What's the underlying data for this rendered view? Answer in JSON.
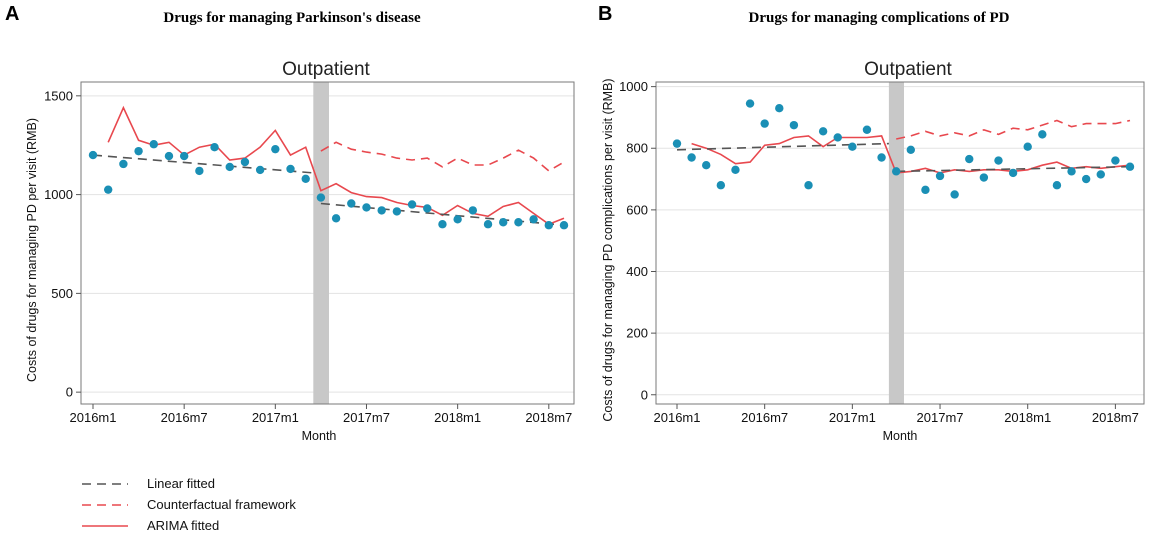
{
  "colors": {
    "observed": "#1a8fb5",
    "linear": "#555555",
    "counterfactual": "#e8484e",
    "arima": "#e8484e",
    "intervention_band": "#c8c8c8"
  },
  "legend": [
    {
      "key": "linear",
      "label": "Linear fitted",
      "style": "dashed"
    },
    {
      "key": "counterfactual",
      "label": "Counterfactual framework",
      "style": "dashed"
    },
    {
      "key": "arima",
      "label": "ARIMA fitted",
      "style": "solid"
    }
  ],
  "chart_data": [
    {
      "panel": "A",
      "type": "line",
      "title": "Drugs for managing Parkinson's disease",
      "subtitle": "Outpatient",
      "xlabel": "Month",
      "ylabel": "Costs of drugs for managing PD per visit (RMB)",
      "x_index_range": [
        0,
        31
      ],
      "intervention_months": [
        15,
        16
      ],
      "x_ticks": [
        {
          "index": 0,
          "label": "2016m1"
        },
        {
          "index": 6,
          "label": "2016m7"
        },
        {
          "index": 12,
          "label": "2017m1"
        },
        {
          "index": 18,
          "label": "2017m7"
        },
        {
          "index": 24,
          "label": "2018m1"
        },
        {
          "index": 30,
          "label": "2018m7"
        }
      ],
      "ylim": [
        -60,
        1570
      ],
      "y_ticks": [
        0,
        500,
        1000,
        1500
      ],
      "grid": true,
      "observed": [
        1200,
        1025,
        1155,
        1220,
        1255,
        1195,
        1195,
        1120,
        1240,
        1140,
        1165,
        1125,
        1230,
        1130,
        1080,
        985,
        880,
        955,
        935,
        920,
        915,
        950,
        930,
        850,
        875,
        920,
        850,
        860,
        860,
        875,
        845,
        845
      ],
      "linear_pre": {
        "x": [
          0,
          14.5
        ],
        "y": [
          1200,
          1110
        ]
      },
      "linear_post": {
        "x": [
          15,
          31
        ],
        "y": [
          955,
          845
        ]
      },
      "counterfactual": {
        "x": [
          15,
          16,
          17,
          18,
          19,
          20,
          21,
          22,
          23,
          24,
          25,
          26,
          27,
          28,
          29,
          30,
          31
        ],
        "y": [
          1220,
          1265,
          1230,
          1215,
          1205,
          1185,
          1175,
          1185,
          1140,
          1185,
          1150,
          1150,
          1185,
          1225,
          1185,
          1120,
          1165
        ]
      },
      "arima": {
        "x": [
          1,
          2,
          3,
          4,
          5,
          6,
          7,
          8,
          9,
          10,
          11,
          12,
          13,
          14,
          15,
          16,
          17,
          18,
          19,
          20,
          21,
          22,
          23,
          24,
          25,
          26,
          27,
          28,
          29,
          30,
          31
        ],
        "y": [
          1265,
          1440,
          1275,
          1250,
          1265,
          1200,
          1240,
          1255,
          1175,
          1185,
          1240,
          1325,
          1200,
          1240,
          1020,
          1055,
          1010,
          990,
          985,
          960,
          945,
          935,
          895,
          945,
          905,
          890,
          940,
          960,
          905,
          850,
          880
        ]
      }
    },
    {
      "panel": "B",
      "type": "line",
      "title": "Drugs for managing complications of PD",
      "subtitle": "Outpatient",
      "xlabel": "Month",
      "ylabel": "Costs of drugs for managing PD complications per visit (RMB)",
      "x_index_range": [
        0,
        31
      ],
      "intervention_months": [
        15,
        16
      ],
      "x_ticks": [
        {
          "index": 0,
          "label": "2016m1"
        },
        {
          "index": 6,
          "label": "2016m7"
        },
        {
          "index": 12,
          "label": "2017m1"
        },
        {
          "index": 18,
          "label": "2017m7"
        },
        {
          "index": 24,
          "label": "2018m1"
        },
        {
          "index": 30,
          "label": "2018m7"
        }
      ],
      "ylim": [
        -30,
        1015
      ],
      "y_ticks": [
        0,
        200,
        400,
        600,
        800,
        1000
      ],
      "grid": true,
      "observed": [
        815,
        770,
        745,
        680,
        730,
        945,
        880,
        930,
        875,
        680,
        855,
        835,
        805,
        860,
        770,
        725,
        795,
        665,
        710,
        650,
        765,
        705,
        760,
        720,
        805,
        845,
        680,
        725,
        700,
        715,
        760,
        740
      ],
      "linear_pre": {
        "x": [
          0,
          14.5
        ],
        "y": [
          795,
          815
        ]
      },
      "linear_post": {
        "x": [
          15,
          31
        ],
        "y": [
          725,
          740
        ]
      },
      "counterfactual": {
        "x": [
          15,
          16,
          17,
          18,
          19,
          20,
          21,
          22,
          23,
          24,
          25,
          26,
          27,
          28,
          29,
          30,
          31
        ],
        "y": [
          830,
          840,
          855,
          840,
          850,
          840,
          860,
          845,
          865,
          860,
          875,
          890,
          870,
          880,
          880,
          880,
          890
        ]
      },
      "arima": {
        "x": [
          1,
          2,
          3,
          4,
          5,
          6,
          7,
          8,
          9,
          10,
          11,
          12,
          13,
          14,
          15,
          16,
          17,
          18,
          19,
          20,
          21,
          22,
          23,
          24,
          25,
          26,
          27,
          28,
          29,
          30,
          31
        ],
        "y": [
          815,
          800,
          780,
          750,
          755,
          810,
          815,
          835,
          840,
          805,
          835,
          835,
          835,
          840,
          720,
          725,
          735,
          720,
          730,
          725,
          730,
          730,
          725,
          730,
          745,
          755,
          735,
          740,
          735,
          740,
          745
        ]
      }
    }
  ]
}
